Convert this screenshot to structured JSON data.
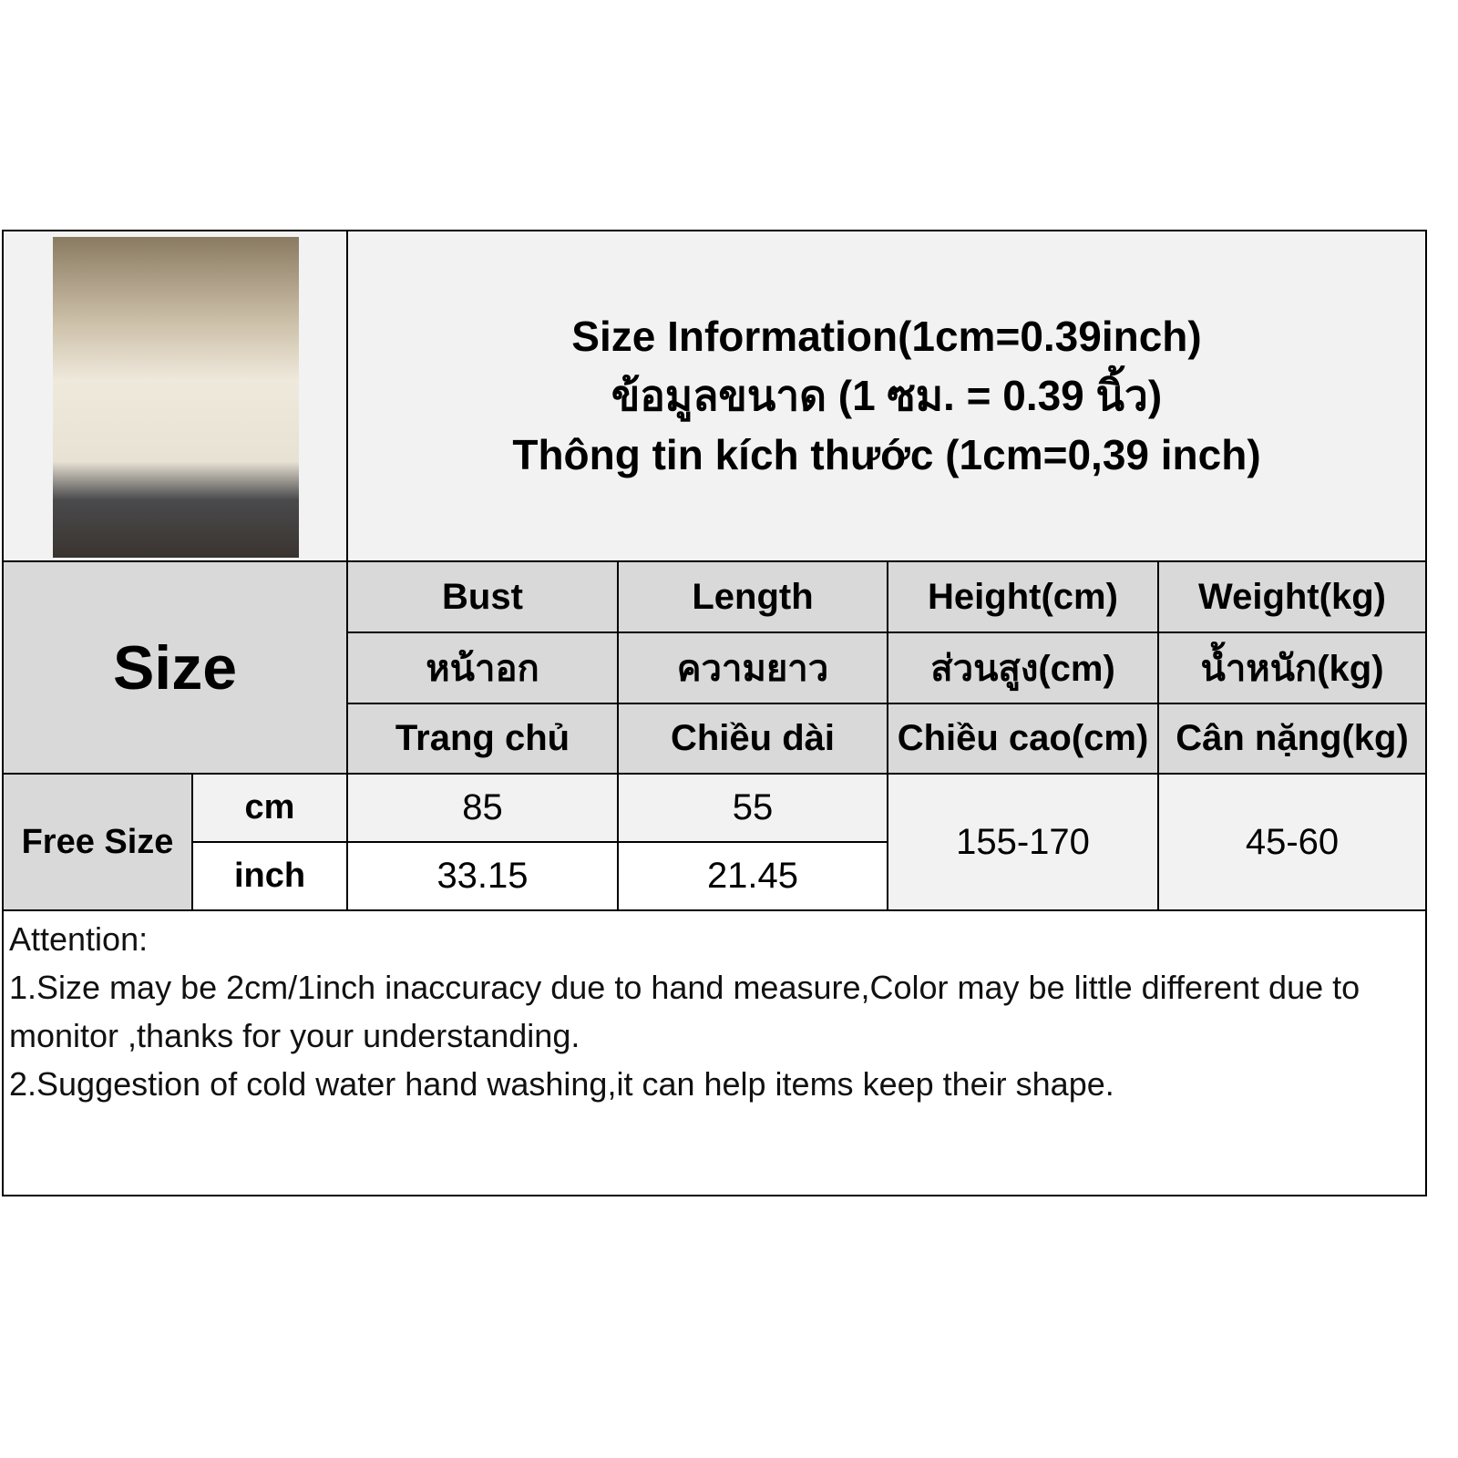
{
  "title": {
    "line_en": "Size Information(1cm=0.39inch)",
    "line_th": "ข้อมูลขนาด (1 ซม. = 0.39 นิ้ว)",
    "line_vi": "Thông tin kích thước (1cm=0,39 inch)"
  },
  "size_label": "Size",
  "columns": [
    {
      "en": "Bust",
      "th": "หน้าอก",
      "vi": "Trang chủ"
    },
    {
      "en": "Length",
      "th": "ความยาว",
      "vi": "Chiều dài"
    },
    {
      "en": "Height(cm)",
      "th": "ส่วนสูง(cm)",
      "vi": "Chiều cao(cm)"
    },
    {
      "en": "Weight(kg)",
      "th": "น้ำหนัก(kg)",
      "vi": "Cân nặng(kg)"
    }
  ],
  "rows": {
    "size_name": "Free Size",
    "cm": {
      "unit": "cm",
      "bust": "85",
      "length": "55"
    },
    "inch": {
      "unit": "inch",
      "bust": "33.15",
      "length": "21.45"
    },
    "height": "155-170",
    "weight": "45-60"
  },
  "attention": {
    "heading": "Attention:",
    "note1": "1.Size may be 2cm/1inch inaccuracy due to hand measure,Color may be little different due to monitor ,thanks for your understanding.",
    "note2": "2.Suggestion of cold water hand washing,it can help items keep their shape."
  },
  "colors": {
    "header_gray": "#d9d9d9",
    "light_gray": "#f2f2f2"
  }
}
